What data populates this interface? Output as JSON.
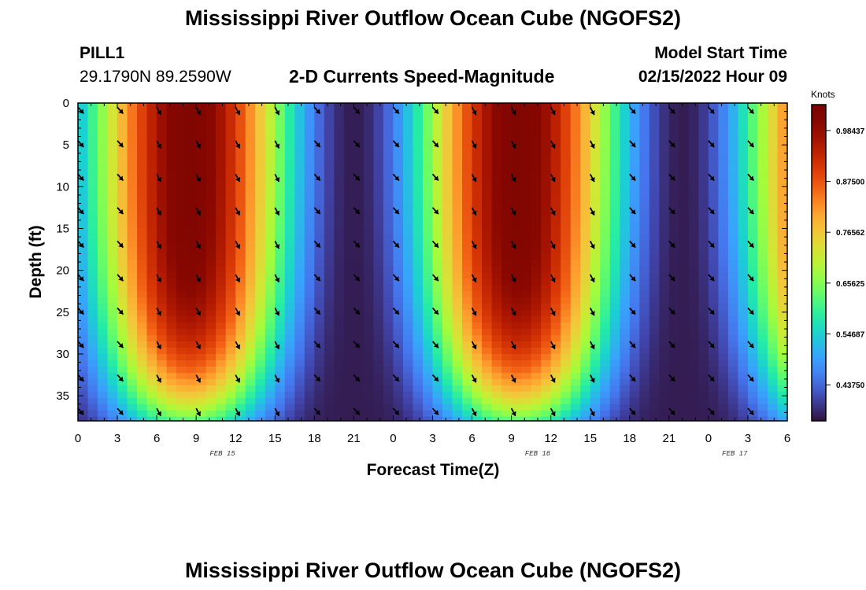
{
  "header": {
    "title": "Mississippi River Outflow Ocean Cube (NGOFS2)",
    "station": "PILL1",
    "coords": "29.1790N  89.2590W",
    "plot_title": "2-D Currents Speed-Magnitude",
    "start_label": "Model Start Time",
    "start_value": "02/15/2022 Hour 09"
  },
  "footer": {
    "title": "Mississippi River Outflow Ocean Cube (NGOFS2)"
  },
  "chart_data": {
    "type": "heatmap",
    "title": "2-D Currents Speed-Magnitude",
    "xlabel": "Forecast Time(Z)",
    "ylabel": "Depth (ft)",
    "x_ticks": [
      "0",
      "3",
      "6",
      "9",
      "12",
      "15",
      "18",
      "21",
      "0",
      "3",
      "6",
      "9",
      "12",
      "15",
      "18",
      "21",
      "0",
      "3",
      "6"
    ],
    "date_labels": [
      {
        "label": "FEB 15",
        "at_hour": 11
      },
      {
        "label": "FEB 16",
        "at_hour": 35
      },
      {
        "label": "FEB 17",
        "at_hour": 50
      }
    ],
    "xlim_hours": [
      0,
      54
    ],
    "y_ticks": [
      "0",
      "5",
      "10",
      "15",
      "20",
      "25",
      "30",
      "35"
    ],
    "ylim": [
      0,
      38
    ],
    "y_inverted": true,
    "colorbar": {
      "unit": "Knots",
      "labels": [
        "0.98437",
        "0.87500",
        "0.76562",
        "0.65625",
        "0.54687",
        "0.43750"
      ],
      "values": [
        0.98437,
        0.875,
        0.76562,
        0.65625,
        0.54687,
        0.4375
      ],
      "range": [
        0.36,
        1.04
      ],
      "colormap": "turbo"
    },
    "speed_model": {
      "min": 0.37,
      "max": 1.02,
      "peak_hours": [
        8.5,
        33.5
      ],
      "trough_hours": [
        21,
        45
      ],
      "bottom_depth": 38
    },
    "vectors": {
      "hours": [
        0,
        3,
        6,
        9,
        12,
        15,
        18,
        21,
        24,
        27,
        30,
        33,
        36,
        39,
        42,
        45,
        48,
        51
      ],
      "depths": [
        0.5,
        4.5,
        8.5,
        12.5,
        16.5,
        20.5,
        24.5,
        28.5,
        32.5,
        36.5
      ],
      "direction": "southeast",
      "color": "#000000"
    }
  }
}
